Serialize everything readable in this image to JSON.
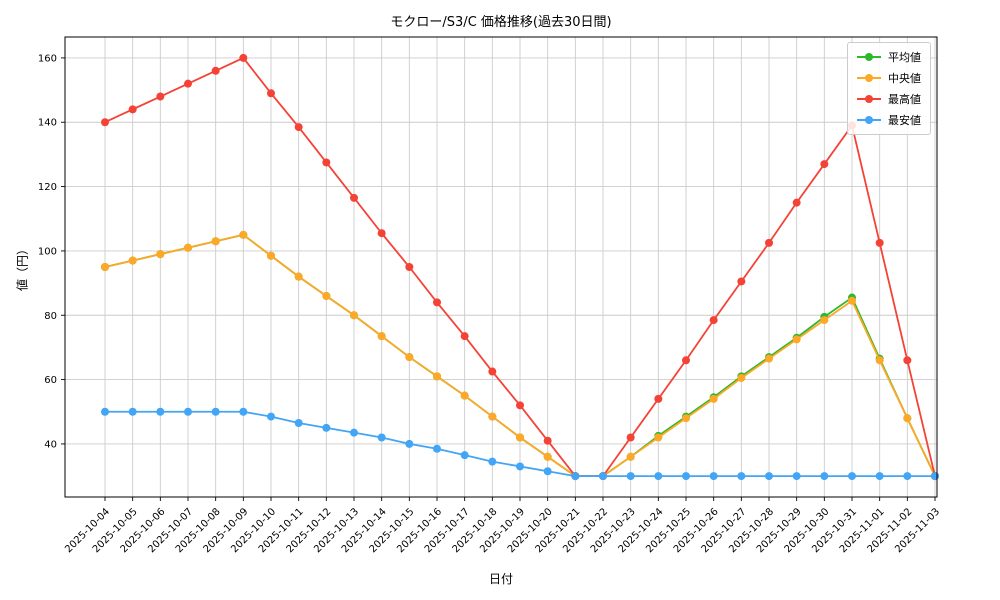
{
  "chart_data": {
    "type": "line",
    "title": "モクロー/S3/C 価格推移(過去30日間)",
    "xlabel": "日付",
    "ylabel": "値（円）",
    "grid": true,
    "grid_color": "#cccccc",
    "legend_position": "upper right",
    "ylim": [
      23.5,
      166.5
    ],
    "yticks": [
      40,
      60,
      80,
      100,
      120,
      140,
      160
    ],
    "x": [
      "2025-10-04",
      "2025-10-05",
      "2025-10-06",
      "2025-10-07",
      "2025-10-08",
      "2025-10-09",
      "2025-10-10",
      "2025-10-11",
      "2025-10-12",
      "2025-10-13",
      "2025-10-14",
      "2025-10-15",
      "2025-10-16",
      "2025-10-17",
      "2025-10-18",
      "2025-10-19",
      "2025-10-20",
      "2025-10-21",
      "2025-10-22",
      "2025-10-23",
      "2025-10-24",
      "2025-10-25",
      "2025-10-26",
      "2025-10-27",
      "2025-10-28",
      "2025-10-29",
      "2025-10-30",
      "2025-10-31",
      "2025-11-01",
      "2025-11-02",
      "2025-11-03"
    ],
    "series": [
      {
        "key": "average",
        "name": "平均値",
        "color": "#2db92d",
        "values": [
          95,
          97,
          99,
          101,
          103,
          105,
          98.5,
          92,
          86,
          80,
          73.5,
          67,
          61,
          55,
          48.5,
          42,
          36,
          30,
          30,
          36,
          42.5,
          48.5,
          54.5,
          61,
          67,
          73,
          79.5,
          85.5,
          66.5,
          48,
          30
        ]
      },
      {
        "key": "median",
        "name": "中央値",
        "color": "#ffa726",
        "values": [
          95,
          97,
          99,
          101,
          103,
          105,
          98.5,
          92,
          86,
          80,
          73.5,
          67,
          61,
          55,
          48.5,
          42,
          36,
          30,
          30,
          36,
          42,
          48,
          54,
          60.5,
          66.5,
          72.5,
          78.5,
          84.5,
          66,
          48,
          30
        ]
      },
      {
        "key": "highest",
        "name": "最高値",
        "color": "#f44336",
        "values": [
          140,
          144,
          148,
          152,
          156,
          160,
          149,
          138.5,
          127.5,
          116.5,
          105.5,
          95,
          84,
          73.5,
          62.5,
          52,
          41,
          30,
          30,
          42,
          54,
          66,
          78.5,
          90.5,
          102.5,
          115,
          127,
          139,
          102.5,
          66,
          30
        ]
      },
      {
        "key": "lowest",
        "name": "最安値",
        "color": "#42a5f5",
        "values": [
          50,
          50,
          50,
          50,
          50,
          50,
          48.5,
          46.5,
          45,
          43.5,
          42,
          40,
          38.5,
          36.5,
          34.5,
          33,
          31.5,
          30,
          30,
          30,
          30,
          30,
          30,
          30,
          30,
          30,
          30,
          30,
          30,
          30,
          30
        ]
      }
    ]
  }
}
